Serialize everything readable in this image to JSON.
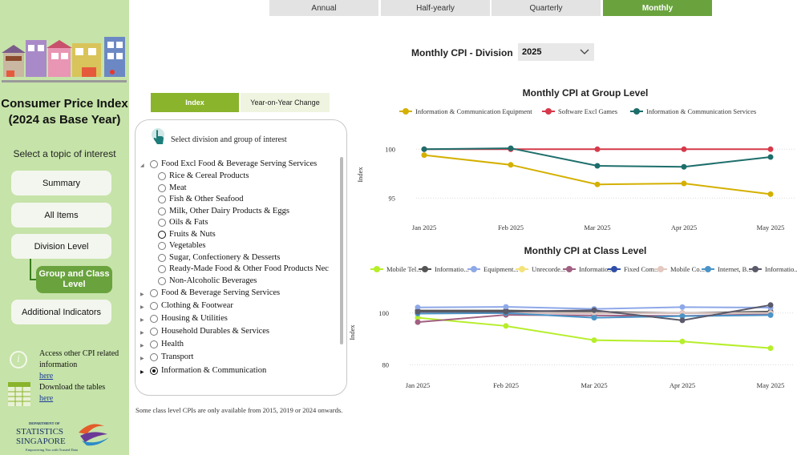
{
  "sidebar": {
    "title": "Consumer Price Index (2024 as Base Year)",
    "topic_prompt": "Select a topic of interest",
    "nav": {
      "summary": "Summary",
      "all_items": "All Items",
      "division": "Division Level",
      "group_class": "Group and Class Level",
      "additional": "Additional Indicators"
    },
    "info": {
      "access_text": "Access other CPI related information",
      "access_link": "here",
      "download_text": "Download the tables",
      "download_link": "here"
    },
    "logo": {
      "line1": "DEPARTMENT OF",
      "line2": "STATISTICS",
      "line3": "SINGAPORE",
      "tagline": "Empowering You with Trusted Data"
    }
  },
  "period_tabs": [
    "Annual",
    "Half-yearly",
    "Quarterly",
    "Monthly"
  ],
  "active_period": "Monthly",
  "division_label": "Monthly CPI - Division",
  "year_select": "2025",
  "mode_buttons": {
    "index": "Index",
    "yoy": "Year-on-Year Change"
  },
  "selection_panel": {
    "heading": "Select division and group of interest",
    "items": [
      {
        "label": "Food Excl Food & Beverage Serving Services",
        "level": 0,
        "expanded": true
      },
      {
        "label": "Rice & Cereal Products",
        "level": 1
      },
      {
        "label": "Meat",
        "level": 1
      },
      {
        "label": "Fish & Other Seafood",
        "level": 1
      },
      {
        "label": "Milk, Other Dairy Products & Eggs",
        "level": 1
      },
      {
        "label": "Oils & Fats",
        "level": 1
      },
      {
        "label": "Fruits & Nuts",
        "level": 1
      },
      {
        "label": "Vegetables",
        "level": 1
      },
      {
        "label": "Sugar, Confectionery & Desserts",
        "level": 1
      },
      {
        "label": "Ready-Made Food & Other Food Products Nec",
        "level": 1
      },
      {
        "label": "Non-Alcoholic Beverages",
        "level": 1
      },
      {
        "label": "Food & Beverage Serving Services",
        "level": 0
      },
      {
        "label": "Clothing & Footwear",
        "level": 0
      },
      {
        "label": "Housing & Utilities",
        "level": 0
      },
      {
        "label": "Household Durables & Services",
        "level": 0
      },
      {
        "label": "Health",
        "level": 0
      },
      {
        "label": "Transport",
        "level": 0
      },
      {
        "label": "Information & Communication",
        "level": 0,
        "selected": true
      }
    ]
  },
  "footnote": "Some class level CPIs are only available from 2015, 2019 or 2024 onwards.",
  "chart_data": [
    {
      "type": "line",
      "title": "Monthly CPI at Group Level",
      "ylabel": "Index",
      "categories": [
        "Jan 2025",
        "Feb 2025",
        "Mar 2025",
        "Apr 2025",
        "May 2025"
      ],
      "yticks": [
        95,
        100
      ],
      "ylim": [
        93.3,
        101.5
      ],
      "grid": true,
      "legend": "top",
      "series": [
        {
          "name": "Information & Communication Equipment",
          "color": "#d4b000",
          "values": [
            99.4,
            98.4,
            96.4,
            96.5,
            95.4
          ]
        },
        {
          "name": "Software Excl Games",
          "color": "#d6394a",
          "values": [
            100.0,
            100.0,
            100.0,
            100.0,
            100.0
          ]
        },
        {
          "name": "Information & Communication Services",
          "color": "#1d6e6b",
          "values": [
            100.0,
            100.1,
            98.3,
            98.2,
            99.2
          ]
        }
      ]
    },
    {
      "type": "line",
      "title": "Monthly CPI at Class Level",
      "ylabel": "Index",
      "categories": [
        "Jan 2025",
        "Feb 2025",
        "Mar 2025",
        "Apr 2025",
        "May 2025"
      ],
      "yticks": [
        80,
        100
      ],
      "ylim": [
        77,
        108
      ],
      "grid": true,
      "legend": "top",
      "series": [
        {
          "name": "Mobile Tel...",
          "color": "#b6ee2a",
          "values": [
            98.2,
            95.0,
            89.5,
            89.0,
            86.4
          ]
        },
        {
          "name": "Informatio...",
          "color": "#555555",
          "values": [
            101.0,
            101.0,
            100.5,
            100.0,
            100.6
          ]
        },
        {
          "name": "Equipment...",
          "color": "#8ea8e8",
          "values": [
            102.2,
            102.4,
            101.6,
            102.3,
            102.1
          ]
        },
        {
          "name": "Unrecorde...",
          "color": "#f4e37b",
          "values": [
            100.0,
            100.0,
            100.0,
            100.0,
            100.0
          ]
        },
        {
          "name": "Informatio...",
          "color": "#a06080",
          "values": [
            96.5,
            99.3,
            99.1,
            98.9,
            99.5
          ]
        },
        {
          "name": "Fixed Com...",
          "color": "#2f4ea8",
          "values": [
            100.0,
            100.0,
            100.0,
            100.0,
            100.0
          ]
        },
        {
          "name": "Mobile Co...",
          "color": "#e3c9c0",
          "values": [
            100.0,
            100.0,
            100.0,
            100.0,
            100.0
          ]
        },
        {
          "name": "Internet, B...",
          "color": "#4a94c8",
          "values": [
            99.8,
            100.0,
            98.2,
            98.8,
            99.2
          ]
        },
        {
          "name": "Informatio...",
          "color": "#5a5a6a",
          "values": [
            100.5,
            100.5,
            101.1,
            97.2,
            103.1
          ]
        }
      ]
    }
  ]
}
